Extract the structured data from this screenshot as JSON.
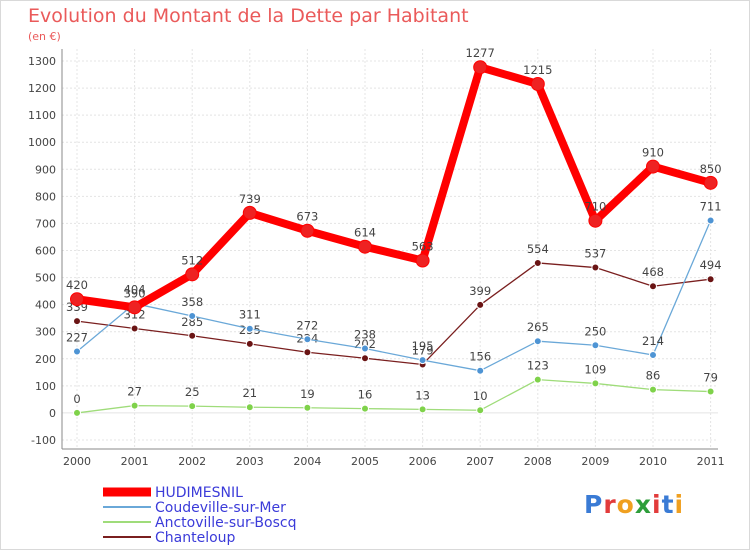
{
  "header": {
    "title": "Evolution du Montant de la Dette par Habitant",
    "unit": "(en €)"
  },
  "logo": {
    "text": "Proxiti",
    "colors": [
      "#3a7bd5",
      "#e23b3b",
      "#f0a020",
      "#2e9e3a",
      "#e23b3b",
      "#3a7bd5",
      "#f0a020"
    ]
  },
  "chart_data": {
    "type": "line",
    "title": "Evolution du Montant de la Dette par Habitant",
    "ylabel": "(en €)",
    "xlabel": "",
    "x": [
      "2000",
      "2001",
      "2002",
      "2003",
      "2004",
      "2005",
      "2006",
      "2007",
      "2008",
      "2009",
      "2010",
      "2011"
    ],
    "ylim": [
      -100,
      1300
    ],
    "yticks": [
      -100,
      0,
      100,
      200,
      300,
      400,
      500,
      600,
      700,
      800,
      900,
      1000,
      1100,
      1200,
      1300
    ],
    "grid": true,
    "legend_position": "bottom-left",
    "series": [
      {
        "name": "Chanteloup",
        "color": "#7a1f1f",
        "dot": "#6a1414",
        "bold": false,
        "values": [
          339,
          312,
          285,
          255,
          224,
          202,
          179,
          399,
          554,
          537,
          468,
          494
        ]
      },
      {
        "name": "Anctoville-sur-Boscq",
        "color": "#9fdc7a",
        "dot": "#7fd24a",
        "bold": false,
        "values": [
          0,
          27,
          25,
          21,
          19,
          16,
          13,
          10,
          123,
          109,
          86,
          79
        ]
      },
      {
        "name": "Coudeville-sur-Mer",
        "color": "#6aa8d8",
        "dot": "#4e94d4",
        "bold": false,
        "values": [
          227,
          404,
          358,
          311,
          272,
          238,
          195,
          156,
          265,
          250,
          214,
          711
        ]
      },
      {
        "name": "HUDIMESNIL",
        "color": "#ff0000",
        "dot": "#ee2222",
        "bold": true,
        "values": [
          420,
          390,
          512,
          739,
          673,
          614,
          563,
          1277,
          1215,
          710,
          910,
          850
        ]
      }
    ],
    "legend_order": [
      "HUDIMESNIL",
      "Coudeville-sur-Mer",
      "Anctoville-sur-Boscq",
      "Chanteloup"
    ]
  }
}
